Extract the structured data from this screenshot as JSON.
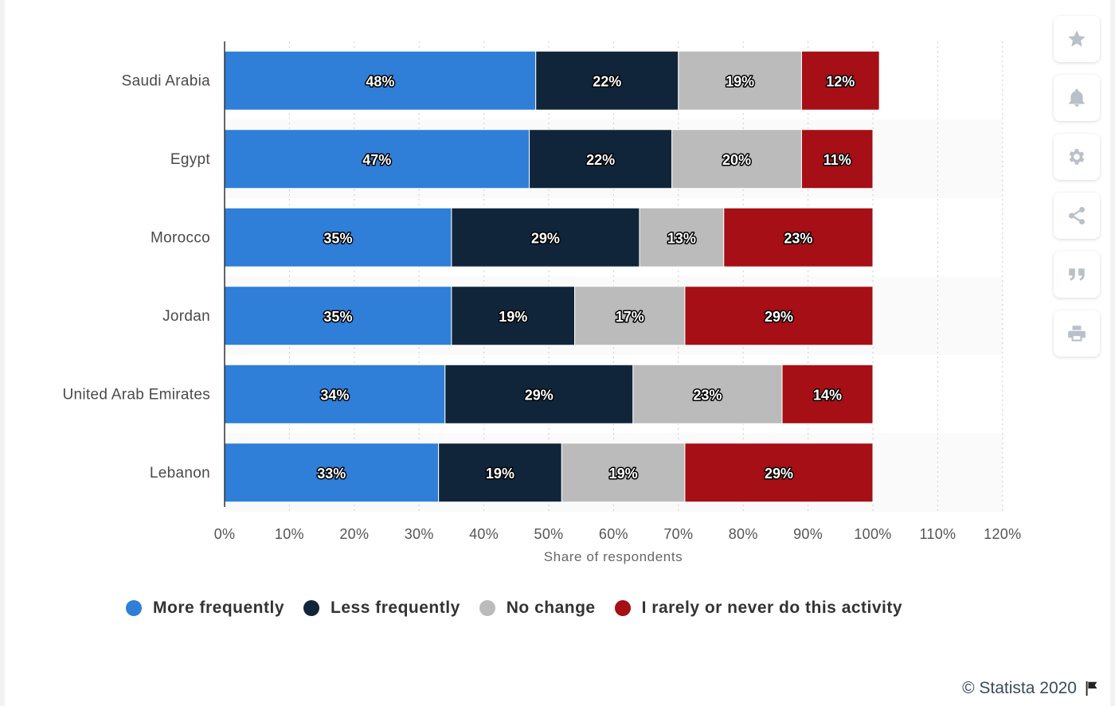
{
  "chart_data": {
    "type": "bar",
    "orientation": "horizontal",
    "stacked": true,
    "categories": [
      "Saudi Arabia",
      "Egypt",
      "Morocco",
      "Jordan",
      "United Arab Emirates",
      "Lebanon"
    ],
    "series": [
      {
        "name": "More frequently",
        "color": "#2f7ed8",
        "values": [
          48,
          47,
          35,
          35,
          34,
          33
        ]
      },
      {
        "name": "Less frequently",
        "color": "#10253a",
        "values": [
          22,
          22,
          29,
          19,
          29,
          19
        ]
      },
      {
        "name": "No change",
        "color": "#bbbbbb",
        "values": [
          19,
          20,
          13,
          17,
          23,
          19
        ]
      },
      {
        "name": "I rarely or never do this activity",
        "color": "#a50f15",
        "values": [
          12,
          11,
          23,
          29,
          14,
          29
        ]
      }
    ],
    "data_labels": [
      [
        "48%",
        "22%",
        "19%",
        "12%"
      ],
      [
        "47%",
        "22%",
        "20%",
        "11%"
      ],
      [
        "35%",
        "29%",
        "13%",
        "23%"
      ],
      [
        "35%",
        "19%",
        "17%",
        "29%"
      ],
      [
        "34%",
        "29%",
        "23%",
        "14%"
      ],
      [
        "33%",
        "19%",
        "19%",
        "29%"
      ]
    ],
    "x_ticks": [
      0,
      10,
      20,
      30,
      40,
      50,
      60,
      70,
      80,
      90,
      100,
      110,
      120
    ],
    "x_tick_labels": [
      "0%",
      "10%",
      "20%",
      "30%",
      "40%",
      "50%",
      "60%",
      "70%",
      "80%",
      "90%",
      "100%",
      "110%",
      "120%"
    ],
    "xlim": [
      0,
      120
    ],
    "xlabel": "Share of respondents",
    "ylabel": "",
    "title": "",
    "grid": "vertical-dotted",
    "legend_position": "bottom"
  },
  "toolbar": {
    "buttons": [
      {
        "icon": "star-icon"
      },
      {
        "icon": "bell-icon"
      },
      {
        "icon": "gear-icon"
      },
      {
        "icon": "share-icon"
      },
      {
        "icon": "quote-icon"
      },
      {
        "icon": "print-icon"
      }
    ]
  },
  "credits": {
    "text": "© Statista 2020",
    "icon": "flag-icon"
  }
}
